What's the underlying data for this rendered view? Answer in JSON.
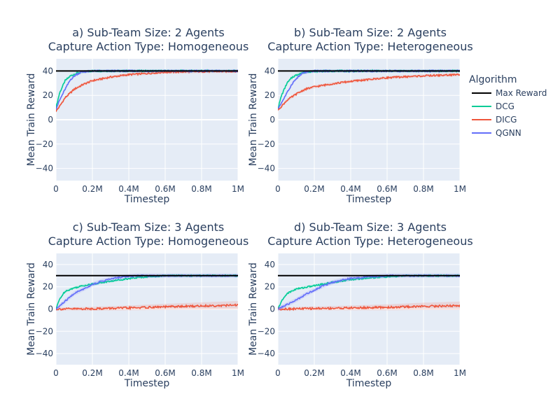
{
  "chart_data": [
    {
      "type": "line",
      "title_line1": "a) Sub-Team Size: 2 Agents",
      "title_line2": "Capture Action Type: Homogeneous",
      "xlabel": "Timestep",
      "ylabel": "Mean Train Reward",
      "xlim": [
        0,
        1000000
      ],
      "ylim": [
        -50,
        50
      ],
      "xticks": [
        0,
        200000,
        400000,
        600000,
        800000,
        1000000
      ],
      "xtick_labels": [
        "0",
        "0.2M",
        "0.4M",
        "0.6M",
        "0.8M",
        "1M"
      ],
      "yticks": [
        -40,
        -20,
        0,
        20,
        40
      ],
      "ytick_labels": [
        "−40",
        "−20",
        "0",
        "20",
        "40"
      ],
      "max_reward": 40,
      "series": [
        {
          "name": "DCG",
          "x": [
            0,
            20000,
            50000,
            80000,
            120000,
            160000,
            200000,
            300000,
            1000000
          ],
          "y": [
            10,
            22,
            32,
            36,
            38.5,
            39.5,
            40,
            40,
            40
          ]
        },
        {
          "name": "DICG",
          "x": [
            0,
            20000,
            50000,
            100000,
            150000,
            200000,
            300000,
            400000,
            500000,
            600000,
            800000,
            1000000
          ],
          "y": [
            7,
            11,
            18,
            25,
            29,
            32,
            35,
            37,
            38,
            39,
            39.5,
            39.7
          ]
        },
        {
          "name": "QGNN",
          "x": [
            0,
            20000,
            50000,
            80000,
            110000,
            140000,
            200000,
            1000000
          ],
          "y": [
            9,
            16,
            25,
            33,
            37,
            39,
            40,
            40
          ]
        }
      ]
    },
    {
      "type": "line",
      "title_line1": "b) Sub-Team Size: 2 Agents",
      "title_line2": "Capture Action Type: Heterogeneous",
      "xlabel": "Timestep",
      "ylabel": "Mean Train Reward",
      "xlim": [
        0,
        1000000
      ],
      "ylim": [
        -50,
        50
      ],
      "xticks": [
        0,
        200000,
        400000,
        600000,
        800000,
        1000000
      ],
      "xtick_labels": [
        "0",
        "0.2M",
        "0.4M",
        "0.6M",
        "0.8M",
        "1M"
      ],
      "yticks": [
        -40,
        -20,
        0,
        20,
        40
      ],
      "ytick_labels": [
        "−40",
        "−20",
        "0",
        "20",
        "40"
      ],
      "max_reward": 40,
      "series": [
        {
          "name": "DCG",
          "x": [
            0,
            20000,
            50000,
            80000,
            120000,
            160000,
            200000,
            300000,
            1000000
          ],
          "y": [
            9,
            20,
            30,
            35,
            38,
            39.3,
            39.8,
            40,
            40
          ]
        },
        {
          "name": "DICG",
          "x": [
            0,
            20000,
            50000,
            100000,
            150000,
            200000,
            300000,
            400000,
            500000,
            600000,
            800000,
            1000000
          ],
          "y": [
            8,
            11,
            16,
            21,
            25,
            27,
            29.5,
            31.5,
            33,
            34.5,
            36,
            37
          ]
        },
        {
          "name": "QGNN",
          "x": [
            0,
            20000,
            50000,
            80000,
            110000,
            140000,
            200000,
            1000000
          ],
          "y": [
            9,
            14,
            22,
            30,
            35,
            38.5,
            40,
            40
          ]
        }
      ]
    },
    {
      "type": "line",
      "title_line1": "c) Sub-Team Size: 3 Agents",
      "title_line2": "Capture Action Type: Homogeneous",
      "xlabel": "Timestep",
      "ylabel": "Mean Train Reward",
      "xlim": [
        0,
        1000000
      ],
      "ylim": [
        -50,
        50
      ],
      "xticks": [
        0,
        200000,
        400000,
        600000,
        800000,
        1000000
      ],
      "xtick_labels": [
        "0",
        "0.2M",
        "0.4M",
        "0.6M",
        "0.8M",
        "1M"
      ],
      "yticks": [
        -40,
        -20,
        0,
        20,
        40
      ],
      "ytick_labels": [
        "−40",
        "−20",
        "0",
        "20",
        "40"
      ],
      "max_reward": 30,
      "series": [
        {
          "name": "DCG",
          "x": [
            0,
            20000,
            50000,
            100000,
            150000,
            200000,
            300000,
            400000,
            500000,
            600000,
            1000000
          ],
          "y": [
            0,
            9,
            16,
            19,
            21,
            22.5,
            25,
            27.5,
            29,
            30,
            30
          ]
        },
        {
          "name": "DICG",
          "x": [
            0,
            200000,
            400000,
            600000,
            800000,
            1000000
          ],
          "y": [
            0,
            0.3,
            1,
            2,
            2.8,
            3.5
          ]
        },
        {
          "name": "QGNN",
          "x": [
            0,
            50000,
            100000,
            150000,
            200000,
            250000,
            300000,
            350000,
            400000,
            450000,
            1000000
          ],
          "y": [
            0,
            7,
            14,
            18,
            22,
            25,
            27,
            28.5,
            29.5,
            30,
            30
          ]
        }
      ]
    },
    {
      "type": "line",
      "title_line1": "d) Sub-Team Size: 3 Agents",
      "title_line2": "Capture Action Type: Heterogeneous",
      "xlabel": "Timestep",
      "ylabel": "Mean Train Reward",
      "xlim": [
        0,
        1000000
      ],
      "ylim": [
        -50,
        50
      ],
      "xticks": [
        0,
        200000,
        400000,
        600000,
        800000,
        1000000
      ],
      "xtick_labels": [
        "0",
        "0.2M",
        "0.4M",
        "0.6M",
        "0.8M",
        "1M"
      ],
      "yticks": [
        -40,
        -20,
        0,
        20,
        40
      ],
      "ytick_labels": [
        "−40",
        "−20",
        "0",
        "20",
        "40"
      ],
      "max_reward": 30,
      "series": [
        {
          "name": "DCG",
          "x": [
            0,
            20000,
            50000,
            100000,
            150000,
            200000,
            300000,
            400000,
            500000,
            600000,
            700000,
            1000000
          ],
          "y": [
            0,
            7,
            14,
            18,
            19.5,
            21,
            24,
            26.5,
            28,
            29,
            30,
            30
          ]
        },
        {
          "name": "DICG",
          "x": [
            0,
            200000,
            400000,
            600000,
            800000,
            1000000
          ],
          "y": [
            0,
            0.5,
            1,
            1.5,
            2.5,
            3
          ]
        },
        {
          "name": "QGNN",
          "x": [
            0,
            50000,
            100000,
            150000,
            200000,
            250000,
            300000,
            350000,
            400000,
            500000,
            600000,
            1000000
          ],
          "y": [
            0,
            4,
            8,
            13,
            17,
            21,
            24,
            26,
            27.5,
            29,
            30,
            30
          ]
        }
      ]
    }
  ],
  "legend": {
    "title": "Algorithm",
    "placement": "right",
    "entries": [
      {
        "name": "Max Reward",
        "color": "#000000"
      },
      {
        "name": "DCG",
        "color": "#00cc96"
      },
      {
        "name": "DICG",
        "color": "#ef553b"
      },
      {
        "name": "QGNN",
        "color": "#636efa"
      }
    ]
  },
  "colors": {
    "plot_background": "#e5ecf6",
    "grid": "#ffffff",
    "text": "#2a3f5f",
    "Max Reward": "#000000",
    "DCG": "#00cc96",
    "DICG": "#ef553b",
    "QGNN": "#636efa"
  }
}
